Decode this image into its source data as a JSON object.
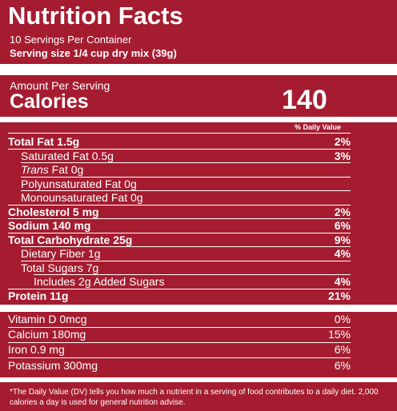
{
  "label": {
    "title": "Nutrition Facts",
    "servings": "10 Servings Per Container",
    "serving_size": "Serving size 1/4 cup dry mix (39g)",
    "amount_per_serving": "Amount Per Serving",
    "calories_label": "Calories",
    "calories_value": "140",
    "dv_header": "% Daily Value",
    "nutrients": [
      {
        "name": "Total Fat 1.5g",
        "dv": "2%"
      },
      {
        "name": "Saturated Fat 0.5g",
        "dv": "3%"
      },
      {
        "name": "Trans Fat 0g",
        "dv": ""
      },
      {
        "name": "Polyunsaturated Fat 0g",
        "dv": ""
      },
      {
        "name": "Monounsaturated Fat 0g",
        "dv": ""
      },
      {
        "name": "Cholesterol 5 mg",
        "dv": "2%"
      },
      {
        "name": "Sodium 140 mg",
        "dv": "6%"
      },
      {
        "name": "Total Carbohydrate 25g",
        "dv": "9%"
      },
      {
        "name": "Dietary Fiber 1g",
        "dv": "4%"
      },
      {
        "name": "Total Sugars 7g",
        "dv": ""
      },
      {
        "name": "Includes 2g Added Sugars",
        "dv": "4%"
      },
      {
        "name": "Protein 11g",
        "dv": "21%"
      }
    ],
    "vitamins": [
      {
        "name": "Vitamin D 0mcg",
        "dv": "0%"
      },
      {
        "name": "Calcium 180mg",
        "dv": "15%"
      },
      {
        "name": "Iron 0.9 mg",
        "dv": "6%"
      },
      {
        "name": "Potassium 300mg",
        "dv": "6%"
      }
    ],
    "footnote": "*The Daily Value (DV) tells you how much a nutrient in a serving of food contributes to a daily diet. 2,000 calories a day is used for general nutrition advise."
  },
  "colors": {
    "background": "#a51c30",
    "text": "#ffffff"
  }
}
